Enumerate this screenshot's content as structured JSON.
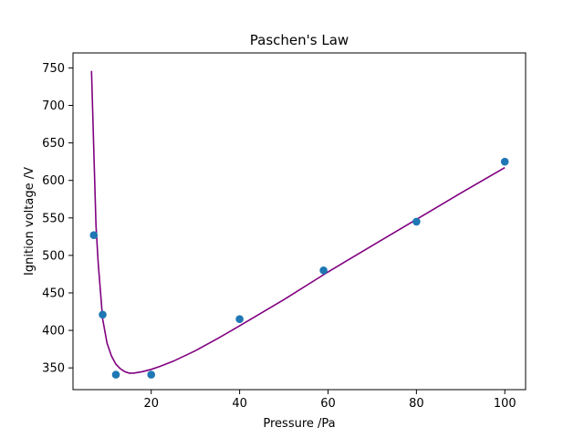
{
  "chart_data": {
    "type": "scatter",
    "title": "Paschen's Law",
    "xlabel": "Pressure /Pa",
    "ylabel": "Ignition voltage /V",
    "xlim": [
      2.3,
      104.7
    ],
    "ylim": [
      321,
      770
    ],
    "xticks": [
      20,
      40,
      60,
      80,
      100
    ],
    "yticks": [
      350,
      400,
      450,
      500,
      550,
      600,
      650,
      700,
      750
    ],
    "grid": false,
    "legend": "none",
    "colors": {
      "points": "#1f77b4",
      "fit": "#800080"
    },
    "series": [
      {
        "kind": "points",
        "x": [
          7,
          9,
          12,
          20,
          40,
          59,
          80,
          100
        ],
        "y": [
          527,
          421,
          341,
          341,
          415,
          480,
          545,
          625
        ]
      },
      {
        "kind": "line",
        "x": [
          6.5,
          7.0,
          7.5,
          8.0,
          9.0,
          10.0,
          11.0,
          12.0,
          13.0,
          14.0,
          15.0,
          16.0,
          18.0,
          20.0,
          22.0,
          25.0,
          30.0,
          35.0,
          40.0,
          50.0,
          60.0,
          70.0,
          80.0,
          90.0,
          100.0
        ],
        "y": [
          746,
          640,
          540,
          490,
          415,
          383,
          366,
          355,
          349,
          345,
          343,
          343,
          345,
          348,
          352,
          359,
          373,
          389,
          406,
          441,
          478,
          513,
          548,
          583,
          617
        ]
      }
    ]
  }
}
